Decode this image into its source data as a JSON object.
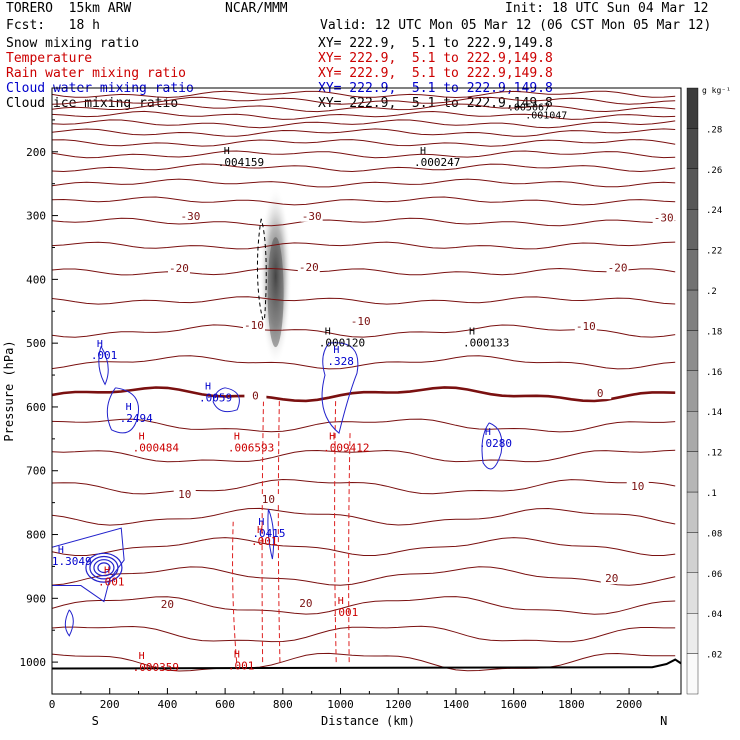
{
  "header": {
    "model": "TORERO  15km ARW",
    "center": "NCAR/MMM",
    "init": "Init: 18 UTC Sun 04 Mar 12",
    "fcst": "Fcst:   18 h",
    "valid": "Valid: 12 UTC Mon 05 Mar 12 (06 CST Mon 05 Mar 12)",
    "fields": [
      {
        "label": "Snow mixing ratio",
        "xy": "XY= 222.9,  5.1 to 222.9,149.8",
        "color": "#000000"
      },
      {
        "label": "Temperature",
        "xy": "XY= 222.9,  5.1 to 222.9,149.8",
        "color": "#cc0000"
      },
      {
        "label": "Rain water mixing ratio",
        "xy": "XY= 222.9,  5.1 to 222.9,149.8",
        "color": "#cc0000"
      },
      {
        "label": "Cloud water mixing ratio",
        "xy": "XY= 222.9,  5.1 to 222.9,149.8",
        "color": "#0000cc"
      },
      {
        "label": "Cloud ice mixing ratio",
        "xy": "XY= 222.9,  5.1 to 222.9,149.8",
        "color": "#000000"
      }
    ]
  },
  "chart_data": {
    "type": "contour_cross_section",
    "xlabel": "Distance (km)",
    "ylabel": "Pressure (hPa)",
    "xlim": [
      0,
      2180
    ],
    "ylim": [
      100,
      1050
    ],
    "x_ticks": [
      0,
      200,
      400,
      600,
      800,
      1000,
      1200,
      1400,
      1600,
      1800,
      2000
    ],
    "y_ticks": [
      200,
      300,
      400,
      500,
      600,
      700,
      800,
      900,
      1000
    ],
    "end_labels": {
      "left": "S",
      "right": "N"
    },
    "colorbar": {
      "unit": "g kg⁻¹",
      "ticks": [
        ".02",
        ".04",
        ".06",
        ".08",
        ".1",
        ".12",
        ".14",
        ".16",
        ".18",
        ".2",
        ".22",
        ".24",
        ".26",
        ".28"
      ]
    },
    "temperature_labels": [
      {
        "text": "-30",
        "x": 480,
        "p": 305
      },
      {
        "text": "-30",
        "x": 900,
        "p": 305
      },
      {
        "text": "-30",
        "x": 2120,
        "p": 308
      },
      {
        "text": "-20",
        "x": 440,
        "p": 387
      },
      {
        "text": "-20",
        "x": 890,
        "p": 385
      },
      {
        "text": "-20",
        "x": 1960,
        "p": 386
      },
      {
        "text": "-10",
        "x": 700,
        "p": 476
      },
      {
        "text": "-10",
        "x": 1070,
        "p": 470
      },
      {
        "text": "-10",
        "x": 1850,
        "p": 478
      },
      {
        "text": "0",
        "x": 705,
        "p": 587
      },
      {
        "text": "0",
        "x": 1900,
        "p": 583
      },
      {
        "text": "10",
        "x": 460,
        "p": 741
      },
      {
        "text": "10",
        "x": 750,
        "p": 749
      },
      {
        "text": "10",
        "x": 2030,
        "p": 729
      },
      {
        "text": "20",
        "x": 400,
        "p": 914
      },
      {
        "text": "20",
        "x": 880,
        "p": 912
      },
      {
        "text": "20",
        "x": 1940,
        "p": 873
      }
    ],
    "maxima": [
      {
        "text": ".004159",
        "x": 630,
        "p": 221,
        "color": "#000000"
      },
      {
        "text": ".000247",
        "x": 1310,
        "p": 221,
        "color": "#000000"
      },
      {
        "text": ".000120",
        "x": 980,
        "p": 504,
        "color": "#000000"
      },
      {
        "text": ".000133",
        "x": 1480,
        "p": 504,
        "color": "#000000"
      },
      {
        "text": ".001",
        "x": 190,
        "p": 523,
        "color": "#0000cc"
      },
      {
        "text": ".328",
        "x": 1010,
        "p": 533,
        "color": "#0000cc"
      },
      {
        "text": ".0059",
        "x": 565,
        "p": 590,
        "color": "#0000cc"
      },
      {
        "text": ".2494",
        "x": 290,
        "p": 622,
        "color": "#0000cc"
      },
      {
        "text": ".0280",
        "x": 1535,
        "p": 661,
        "color": "#0000cc"
      },
      {
        "text": ".000484",
        "x": 335,
        "p": 668,
        "color": "#cc0000"
      },
      {
        "text": ".006593",
        "x": 665,
        "p": 668,
        "color": "#cc0000"
      },
      {
        "text": ".009412",
        "x": 995,
        "p": 668,
        "color": "#cc0000"
      },
      {
        "text": ".0415",
        "x": 750,
        "p": 802,
        "color": "#0000cc"
      },
      {
        "text": ".001",
        "x": 745,
        "p": 815,
        "color": "#cc0000"
      },
      {
        "text": "1.3049",
        "x": 55,
        "p": 846,
        "color": "#0000cc"
      },
      {
        "text": ".001",
        "x": 215,
        "p": 878,
        "color": "#cc0000"
      },
      {
        "text": ".001",
        "x": 1025,
        "p": 926,
        "color": "#cc0000"
      },
      {
        "text": ".000359",
        "x": 335,
        "p": 1012,
        "color": "#cc0000"
      },
      {
        "text": ".001",
        "x": 665,
        "p": 1010,
        "color": "#cc0000"
      }
    ],
    "top_overlap_labels": [
      {
        "text": ".005067",
        "x": 1580,
        "p": 135
      },
      {
        "text": ".001047",
        "x": 1640,
        "p": 148
      }
    ]
  }
}
